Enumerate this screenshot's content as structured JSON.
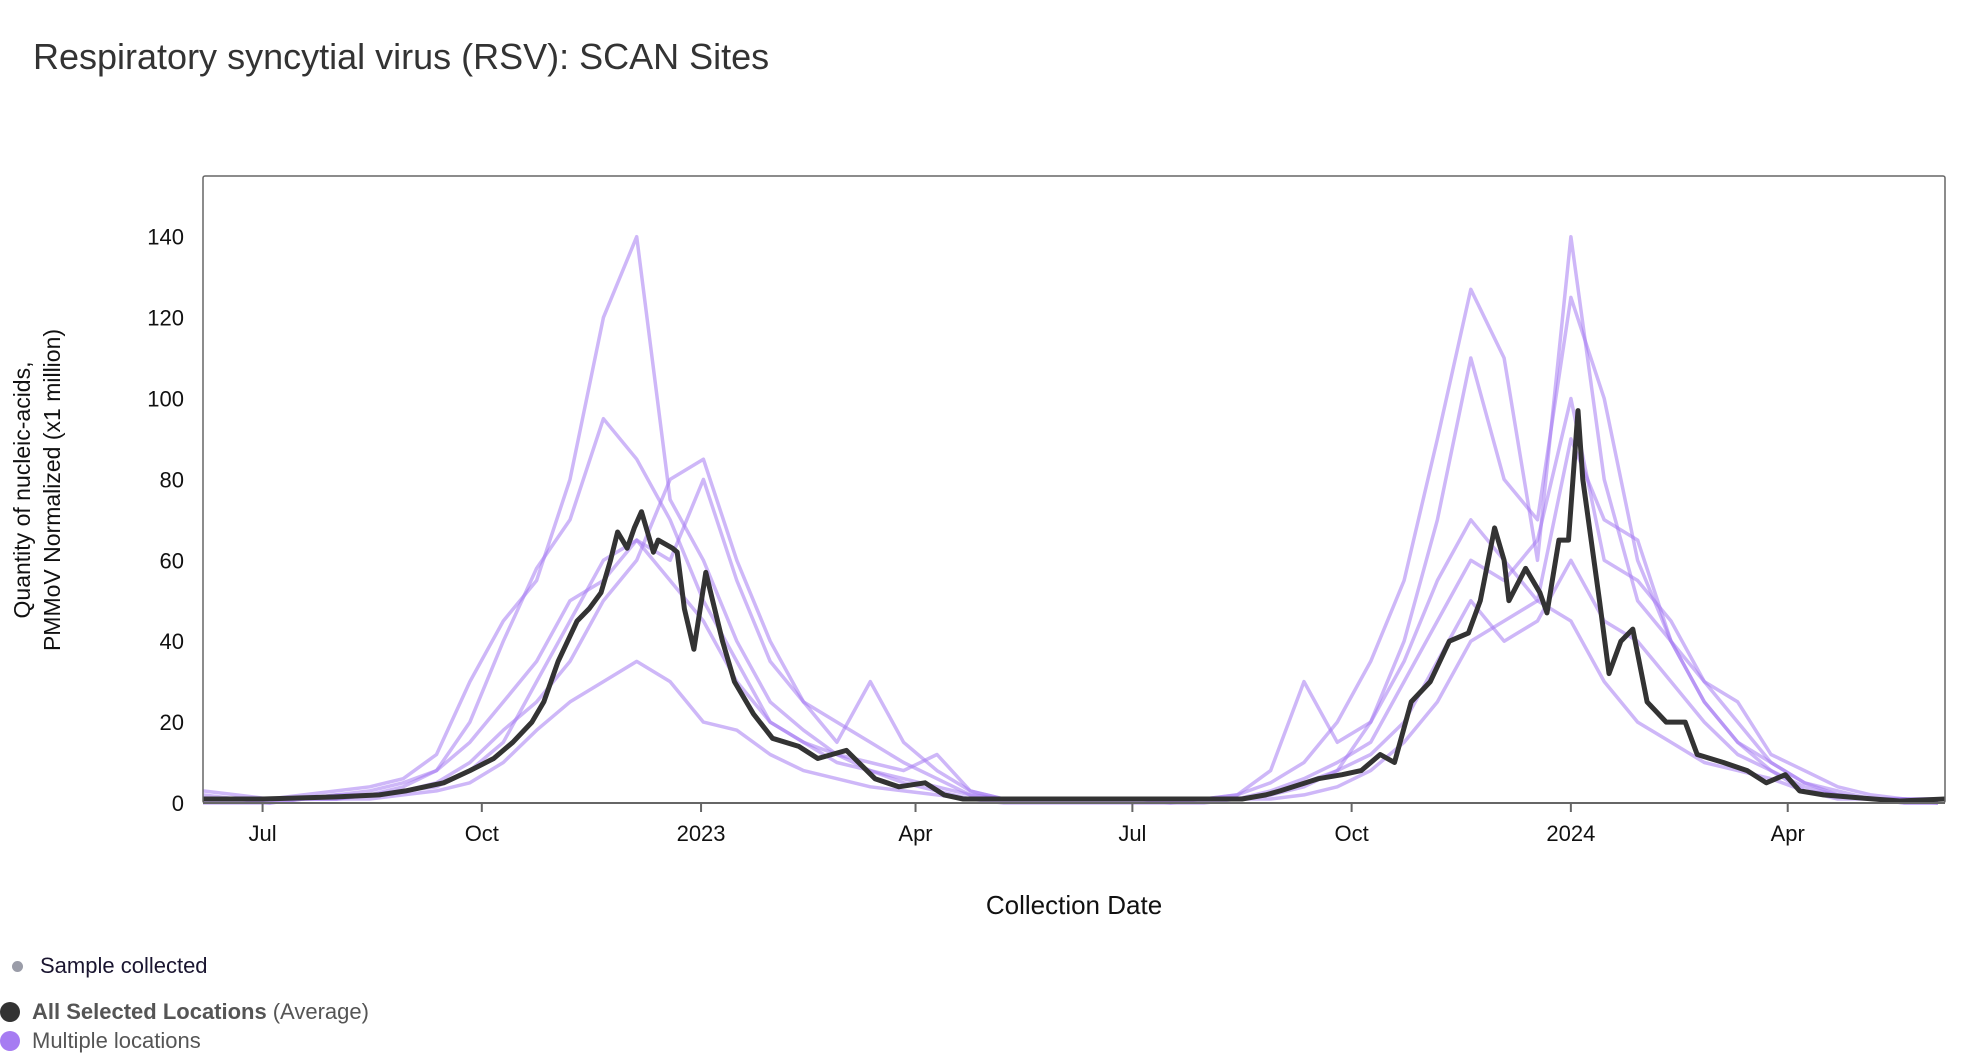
{
  "title": "Respiratory syncytial virus (RSV): SCAN Sites",
  "legend": {
    "sample": "Sample collected",
    "average_bold": "All Selected Locations",
    "average_suffix": "(Average)",
    "multiple": "Multiple locations",
    "colors": {
      "sample": "#9a9ca8",
      "average": "#333333",
      "locations": "#a67cf2"
    }
  },
  "chart_data": {
    "type": "line",
    "xlabel": "Collection Date",
    "ylabel": [
      "Quantity of nucleic-acids,",
      "PMMoV Normalized (x1 million)"
    ],
    "xlim": [
      "2022-06-06",
      "2024-06-06"
    ],
    "ylim": [
      0,
      155
    ],
    "x_ticks": [
      {
        "date": "2022-07-01",
        "label": "Jul"
      },
      {
        "date": "2022-10-01",
        "label": "Oct"
      },
      {
        "date": "2023-01-01",
        "label": "2023"
      },
      {
        "date": "2023-04-01",
        "label": "Apr"
      },
      {
        "date": "2023-07-01",
        "label": "Jul"
      },
      {
        "date": "2023-10-01",
        "label": "Oct"
      },
      {
        "date": "2024-01-01",
        "label": "2024"
      },
      {
        "date": "2024-04-01",
        "label": "Apr"
      }
    ],
    "y_ticks": [
      0,
      20,
      40,
      60,
      80,
      100,
      120,
      140
    ],
    "grid": false,
    "legend_placement": "bottom-left",
    "average": {
      "name": "All Selected Locations (Average)",
      "points": [
        [
          "2022-06-06",
          1
        ],
        [
          "2022-07-01",
          1
        ],
        [
          "2022-08-01",
          1.5
        ],
        [
          "2022-08-19",
          2
        ],
        [
          "2022-08-30",
          3
        ],
        [
          "2022-09-15",
          5
        ],
        [
          "2022-09-26",
          8
        ],
        [
          "2022-10-06",
          11
        ],
        [
          "2022-10-14",
          15
        ],
        [
          "2022-10-22",
          20
        ],
        [
          "2022-10-27",
          25
        ],
        [
          "2022-11-02",
          35
        ],
        [
          "2022-11-10",
          45
        ],
        [
          "2022-11-15",
          48
        ],
        [
          "2022-11-20",
          52
        ],
        [
          "2022-11-24",
          60
        ],
        [
          "2022-11-27",
          67
        ],
        [
          "2022-12-01",
          63
        ],
        [
          "2022-12-04",
          68
        ],
        [
          "2022-12-07",
          72
        ],
        [
          "2022-12-12",
          62
        ],
        [
          "2022-12-14",
          65
        ],
        [
          "2022-12-20",
          63
        ],
        [
          "2022-12-22",
          62
        ],
        [
          "2022-12-25",
          48
        ],
        [
          "2022-12-29",
          38
        ],
        [
          "2023-01-03",
          57
        ],
        [
          "2023-01-10",
          40
        ],
        [
          "2023-01-15",
          30
        ],
        [
          "2023-01-23",
          22
        ],
        [
          "2023-01-31",
          16
        ],
        [
          "2023-02-11",
          14
        ],
        [
          "2023-02-19",
          11
        ],
        [
          "2023-03-03",
          13
        ],
        [
          "2023-03-15",
          6
        ],
        [
          "2023-03-25",
          4
        ],
        [
          "2023-04-05",
          5
        ],
        [
          "2023-04-13",
          2
        ],
        [
          "2023-04-21",
          1
        ],
        [
          "2023-05-15",
          1
        ],
        [
          "2023-06-15",
          1
        ],
        [
          "2023-07-15",
          1
        ],
        [
          "2023-08-16",
          1
        ],
        [
          "2023-08-26",
          2
        ],
        [
          "2023-09-01",
          3
        ],
        [
          "2023-09-17",
          6
        ],
        [
          "2023-09-27",
          7
        ],
        [
          "2023-10-05",
          8
        ],
        [
          "2023-10-13",
          12
        ],
        [
          "2023-10-19",
          10
        ],
        [
          "2023-10-26",
          25
        ],
        [
          "2023-11-03",
          30
        ],
        [
          "2023-11-11",
          40
        ],
        [
          "2023-11-19",
          42
        ],
        [
          "2023-11-24",
          50
        ],
        [
          "2023-11-30",
          68
        ],
        [
          "2023-12-04",
          60
        ],
        [
          "2023-12-06",
          50
        ],
        [
          "2023-12-13",
          58
        ],
        [
          "2023-12-19",
          52
        ],
        [
          "2023-12-22",
          47
        ],
        [
          "2023-12-27",
          65
        ],
        [
          "2023-12-31",
          65
        ],
        [
          "2024-01-04",
          97
        ],
        [
          "2024-01-06",
          80
        ],
        [
          "2024-01-13",
          50
        ],
        [
          "2024-01-17",
          32
        ],
        [
          "2024-01-22",
          40
        ],
        [
          "2024-01-27",
          43
        ],
        [
          "2024-02-02",
          25
        ],
        [
          "2024-02-10",
          20
        ],
        [
          "2024-02-18",
          20
        ],
        [
          "2024-02-23",
          12
        ],
        [
          "2024-03-05",
          10
        ],
        [
          "2024-03-15",
          8
        ],
        [
          "2024-03-23",
          5
        ],
        [
          "2024-03-31",
          7
        ],
        [
          "2024-04-06",
          3
        ],
        [
          "2024-04-16",
          2
        ],
        [
          "2024-05-07",
          1
        ],
        [
          "2024-05-18",
          0.5
        ],
        [
          "2024-06-06",
          1
        ]
      ]
    },
    "locations": {
      "name": "Multiple locations",
      "x": [
        "2022-06-06",
        "2022-06-20",
        "2022-07-04",
        "2022-07-18",
        "2022-08-01",
        "2022-08-15",
        "2022-08-29",
        "2022-09-12",
        "2022-09-26",
        "2022-10-10",
        "2022-10-24",
        "2022-11-07",
        "2022-11-21",
        "2022-12-05",
        "2022-12-19",
        "2023-01-02",
        "2023-01-16",
        "2023-01-30",
        "2023-02-13",
        "2023-02-27",
        "2023-03-13",
        "2023-03-27",
        "2023-04-10",
        "2023-04-24",
        "2023-05-08",
        "2023-05-22",
        "2023-06-05",
        "2023-06-19",
        "2023-07-03",
        "2023-07-17",
        "2023-07-31",
        "2023-08-14",
        "2023-08-28",
        "2023-09-11",
        "2023-09-25",
        "2023-10-09",
        "2023-10-23",
        "2023-11-06",
        "2023-11-20",
        "2023-12-04",
        "2023-12-18",
        "2024-01-01",
        "2024-01-15",
        "2024-01-29",
        "2024-02-12",
        "2024-02-26",
        "2024-03-11",
        "2024-03-25",
        "2024-04-08",
        "2024-04-22",
        "2024-05-06",
        "2024-05-20",
        "2024-06-03"
      ],
      "series": [
        [
          3,
          2,
          1,
          2,
          3,
          4,
          6,
          12,
          30,
          45,
          55,
          80,
          120,
          140,
          75,
          60,
          40,
          25,
          18,
          12,
          8,
          5,
          3,
          1,
          1,
          1,
          1,
          1,
          1,
          1,
          1,
          2,
          5,
          10,
          20,
          35,
          55,
          90,
          127,
          110,
          60,
          140,
          80,
          50,
          40,
          25,
          15,
          8,
          4,
          2,
          1,
          1,
          1
        ],
        [
          1,
          1,
          1,
          1,
          2,
          3,
          5,
          8,
          20,
          40,
          58,
          70,
          95,
          85,
          70,
          50,
          35,
          20,
          15,
          10,
          8,
          6,
          4,
          2,
          1,
          1,
          1,
          1,
          1,
          1,
          1,
          2,
          8,
          30,
          15,
          20,
          40,
          70,
          110,
          80,
          70,
          125,
          100,
          60,
          40,
          30,
          20,
          10,
          5,
          3,
          1,
          1,
          0
        ],
        [
          2,
          1,
          1,
          1,
          1,
          2,
          3,
          5,
          10,
          18,
          25,
          35,
          50,
          60,
          80,
          85,
          60,
          40,
          25,
          15,
          30,
          15,
          8,
          3,
          1,
          1,
          1,
          1,
          1,
          1,
          1,
          1,
          3,
          6,
          10,
          15,
          30,
          45,
          60,
          55,
          65,
          100,
          60,
          55,
          45,
          30,
          25,
          12,
          8,
          4,
          2,
          1,
          1
        ],
        [
          1,
          1,
          0,
          1,
          1,
          2,
          3,
          4,
          8,
          15,
          30,
          45,
          60,
          65,
          55,
          45,
          30,
          20,
          15,
          12,
          10,
          8,
          12,
          3,
          1,
          1,
          1,
          1,
          1,
          0,
          1,
          1,
          2,
          4,
          8,
          20,
          35,
          55,
          70,
          60,
          50,
          90,
          70,
          65,
          40,
          25,
          15,
          10,
          5,
          2,
          1,
          1,
          0
        ],
        [
          0,
          0,
          0,
          1,
          1,
          1,
          2,
          3,
          5,
          10,
          18,
          25,
          30,
          35,
          30,
          20,
          18,
          12,
          8,
          6,
          4,
          3,
          2,
          1,
          0,
          0,
          0,
          0,
          0,
          0,
          0,
          1,
          1,
          2,
          4,
          8,
          15,
          25,
          40,
          45,
          50,
          45,
          30,
          20,
          15,
          10,
          8,
          6,
          3,
          1,
          1,
          0,
          0
        ],
        [
          1,
          1,
          1,
          1,
          2,
          2,
          4,
          8,
          15,
          25,
          35,
          50,
          55,
          65,
          60,
          80,
          55,
          35,
          25,
          20,
          15,
          10,
          6,
          2,
          1,
          1,
          1,
          1,
          1,
          1,
          1,
          1,
          2,
          5,
          8,
          12,
          20,
          35,
          50,
          40,
          45,
          60,
          45,
          40,
          30,
          20,
          12,
          8,
          3,
          2,
          1,
          0,
          0
        ]
      ]
    }
  }
}
